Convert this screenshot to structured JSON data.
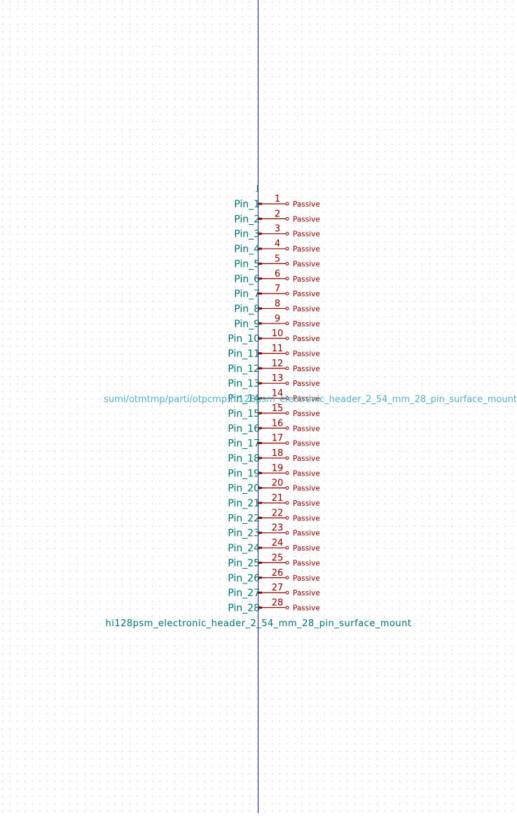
{
  "symbol": {
    "reference": "J",
    "value": "hi128psm_electronic_header_2_54_mm_28_pin_surface_mount",
    "footprint": "sumi/otmtmp/parti/otpcmp:hi128psm_electronic_header_2_54_mm_28_pin_surface_mount",
    "pin_type_label": "Passive"
  },
  "pins": [
    {
      "number": "1",
      "name": "Pin_1"
    },
    {
      "number": "2",
      "name": "Pin_2"
    },
    {
      "number": "3",
      "name": "Pin_3"
    },
    {
      "number": "4",
      "name": "Pin_4"
    },
    {
      "number": "5",
      "name": "Pin_5"
    },
    {
      "number": "6",
      "name": "Pin_6"
    },
    {
      "number": "7",
      "name": "Pin_7"
    },
    {
      "number": "8",
      "name": "Pin_8"
    },
    {
      "number": "9",
      "name": "Pin_9"
    },
    {
      "number": "10",
      "name": "Pin_10"
    },
    {
      "number": "11",
      "name": "Pin_11"
    },
    {
      "number": "12",
      "name": "Pin_12"
    },
    {
      "number": "13",
      "name": "Pin_13"
    },
    {
      "number": "14",
      "name": "Pin_14"
    },
    {
      "number": "15",
      "name": "Pin_15"
    },
    {
      "number": "16",
      "name": "Pin_16"
    },
    {
      "number": "17",
      "name": "Pin_17"
    },
    {
      "number": "18",
      "name": "Pin_18"
    },
    {
      "number": "19",
      "name": "Pin_19"
    },
    {
      "number": "20",
      "name": "Pin_20"
    },
    {
      "number": "21",
      "name": "Pin_21"
    },
    {
      "number": "22",
      "name": "Pin_22"
    },
    {
      "number": "23",
      "name": "Pin_23"
    },
    {
      "number": "24",
      "name": "Pin_24"
    },
    {
      "number": "25",
      "name": "Pin_25"
    },
    {
      "number": "26",
      "name": "Pin_26"
    },
    {
      "number": "27",
      "name": "Pin_27"
    },
    {
      "number": "28",
      "name": "Pin_28"
    }
  ],
  "colors": {
    "background": "#ffffff",
    "grid_dot": "#a9a9a9",
    "axis": "#1f1f8f",
    "pin_line": "#8b0000",
    "pin_number": "#8b0000",
    "pin_name": "#007070",
    "pin_type": "#8b0000",
    "field_text": "#007070",
    "footprint_text": "#56b0c4"
  }
}
